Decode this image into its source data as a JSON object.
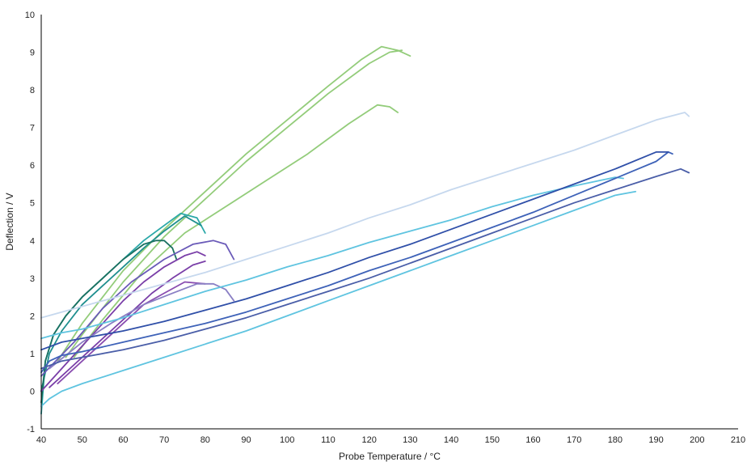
{
  "chart_data": {
    "type": "line",
    "title": "",
    "xlabel": "Probe Temperature / °C",
    "ylabel": "Deflection / V",
    "xlim": [
      40,
      210
    ],
    "ylim": [
      -1,
      10
    ],
    "x_ticks": [
      "40",
      "50",
      "60",
      "70",
      "80",
      "90",
      "100",
      "110",
      "120",
      "130",
      "140",
      "150",
      "160",
      "170",
      "180",
      "190",
      "200",
      "210"
    ],
    "y_ticks": [
      "-1",
      "0",
      "1",
      "2",
      "3",
      "4",
      "5",
      "6",
      "7",
      "8",
      "9",
      "10"
    ],
    "grid": false,
    "legend": "none",
    "series": [
      {
        "color": "#93cc7a",
        "x": [
          44,
          50,
          60,
          70,
          80,
          90,
          100,
          110,
          118,
          123,
          127,
          130
        ],
        "y": [
          0.8,
          1.8,
          3.2,
          4.3,
          5.3,
          6.3,
          7.2,
          8.1,
          8.8,
          9.15,
          9.05,
          8.9
        ]
      },
      {
        "color": "#93cc7a",
        "x": [
          46,
          50,
          60,
          70,
          80,
          90,
          100,
          110,
          120,
          125,
          128
        ],
        "y": [
          0.9,
          1.5,
          2.9,
          4.1,
          5.1,
          6.1,
          7.0,
          7.9,
          8.7,
          9.0,
          9.05
        ]
      },
      {
        "color": "#93cc7a",
        "x": [
          48,
          55,
          65,
          75,
          85,
          95,
          105,
          115,
          122,
          125,
          127
        ],
        "y": [
          0.9,
          1.9,
          3.2,
          4.2,
          4.9,
          5.6,
          6.3,
          7.1,
          7.6,
          7.55,
          7.4
        ]
      },
      {
        "color": "#2aa8a8",
        "x": [
          40,
          41,
          43,
          46,
          50,
          55,
          60,
          65,
          70,
          74,
          78,
          80
        ],
        "y": [
          -0.6,
          0.8,
          1.5,
          2.0,
          2.5,
          3.0,
          3.5,
          4.0,
          4.4,
          4.72,
          4.6,
          4.2
        ]
      },
      {
        "color": "#1f8f8f",
        "x": [
          40,
          42,
          45,
          50,
          55,
          60,
          65,
          70,
          75,
          79
        ],
        "y": [
          0.0,
          1.0,
          1.6,
          2.3,
          2.8,
          3.3,
          3.8,
          4.25,
          4.65,
          4.4
        ]
      },
      {
        "color": "#1a7060",
        "x": [
          40,
          41,
          43,
          46,
          50,
          55,
          60,
          65,
          68,
          70,
          72,
          73
        ],
        "y": [
          -0.3,
          0.8,
          1.5,
          2.0,
          2.5,
          3.0,
          3.5,
          3.9,
          4.0,
          4.0,
          3.8,
          3.5
        ]
      },
      {
        "color": "#7a3fa8",
        "x": [
          40,
          45,
          50,
          55,
          60,
          65,
          70,
          75,
          78,
          80
        ],
        "y": [
          0.0,
          0.6,
          1.2,
          1.8,
          2.4,
          2.9,
          3.3,
          3.6,
          3.7,
          3.6
        ]
      },
      {
        "color": "#7a3fa8",
        "x": [
          42,
          47,
          52,
          57,
          62,
          67,
          72,
          77,
          80
        ],
        "y": [
          0.1,
          0.6,
          1.1,
          1.6,
          2.1,
          2.6,
          3.0,
          3.35,
          3.45
        ]
      },
      {
        "color": "#6a5ab8",
        "x": [
          40,
          48,
          55,
          62,
          70,
          77,
          82,
          85,
          87
        ],
        "y": [
          0.4,
          1.3,
          2.2,
          2.9,
          3.5,
          3.9,
          4.0,
          3.9,
          3.5
        ]
      },
      {
        "color": "#8a4db0",
        "x": [
          44,
          50,
          55,
          60,
          65,
          70,
          75,
          80
        ],
        "y": [
          0.2,
          0.8,
          1.3,
          1.8,
          2.3,
          2.6,
          2.9,
          2.85
        ]
      },
      {
        "color": "#8a7fc4",
        "x": [
          42,
          50,
          57,
          65,
          72,
          78,
          82,
          85,
          87
        ],
        "y": [
          0.6,
          1.3,
          1.8,
          2.3,
          2.6,
          2.85,
          2.85,
          2.7,
          2.4
        ]
      },
      {
        "color": "#c6d8ee",
        "x": [
          40,
          50,
          60,
          70,
          80,
          90,
          100,
          110,
          120,
          130,
          140,
          150,
          160,
          170,
          180,
          190,
          197,
          198
        ],
        "y": [
          1.95,
          2.25,
          2.55,
          2.85,
          3.15,
          3.5,
          3.85,
          4.2,
          4.6,
          4.95,
          5.35,
          5.7,
          6.05,
          6.4,
          6.8,
          7.2,
          7.4,
          7.3
        ]
      },
      {
        "color": "#5fc4e0",
        "x": [
          40,
          45,
          50,
          60,
          70,
          80,
          90,
          100,
          110,
          120,
          130,
          140,
          150,
          160,
          170,
          180,
          182
        ],
        "y": [
          1.4,
          1.55,
          1.65,
          1.95,
          2.3,
          2.65,
          2.95,
          3.3,
          3.6,
          3.95,
          4.25,
          4.55,
          4.9,
          5.2,
          5.45,
          5.68,
          5.65
        ]
      },
      {
        "color": "#5fc4e0",
        "x": [
          40,
          42,
          45,
          50,
          60,
          70,
          80,
          90,
          100,
          110,
          120,
          130,
          140,
          150,
          160,
          170,
          180,
          185
        ],
        "y": [
          -0.4,
          -0.2,
          0.0,
          0.2,
          0.55,
          0.9,
          1.25,
          1.6,
          2.0,
          2.4,
          2.8,
          3.2,
          3.6,
          4.0,
          4.4,
          4.8,
          5.2,
          5.3
        ]
      },
      {
        "color": "#3e62b8",
        "x": [
          40,
          42,
          45,
          50,
          60,
          70,
          80,
          90,
          100,
          110,
          120,
          130,
          140,
          150,
          160,
          170,
          180,
          190,
          193,
          194
        ],
        "y": [
          0.5,
          0.8,
          0.95,
          1.05,
          1.3,
          1.55,
          1.8,
          2.1,
          2.45,
          2.8,
          3.2,
          3.55,
          3.95,
          4.35,
          4.75,
          5.2,
          5.65,
          6.1,
          6.35,
          6.3
        ]
      },
      {
        "color": "#2f4fa8",
        "x": [
          40,
          45,
          50,
          60,
          70,
          80,
          90,
          100,
          110,
          120,
          130,
          140,
          150,
          160,
          170,
          180,
          190,
          193
        ],
        "y": [
          1.1,
          1.3,
          1.4,
          1.6,
          1.85,
          2.15,
          2.45,
          2.8,
          3.15,
          3.55,
          3.9,
          4.3,
          4.7,
          5.1,
          5.5,
          5.9,
          6.35,
          6.35
        ]
      },
      {
        "color": "#4a5ea8",
        "x": [
          40,
          45,
          50,
          60,
          70,
          80,
          90,
          100,
          110,
          120,
          130,
          140,
          150,
          160,
          170,
          180,
          190,
          196,
          198
        ],
        "y": [
          0.6,
          0.8,
          0.9,
          1.1,
          1.35,
          1.65,
          1.95,
          2.3,
          2.65,
          3.0,
          3.4,
          3.8,
          4.2,
          4.6,
          5.0,
          5.35,
          5.7,
          5.9,
          5.8
        ]
      }
    ]
  }
}
